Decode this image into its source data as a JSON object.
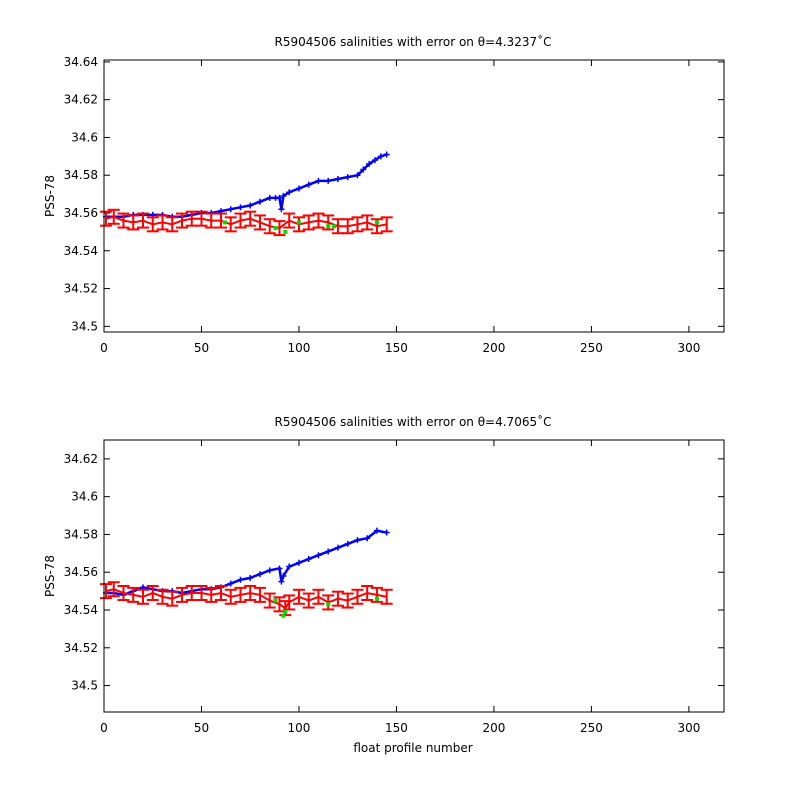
{
  "chart_data": [
    {
      "type": "line",
      "title": "R5904506 salinities with error on θ=4.3237˚C",
      "xlabel": "",
      "ylabel": "PSS-78",
      "xlim": [
        0,
        318
      ],
      "ylim": [
        34.497,
        34.641
      ],
      "xticks": [
        0,
        50,
        100,
        150,
        200,
        250,
        300
      ],
      "xtick_labels": [
        "0",
        "50",
        "100",
        "150",
        "200",
        "250",
        "300"
      ],
      "yticks": [
        34.5,
        34.52,
        34.54,
        34.56,
        34.58,
        34.6,
        34.62,
        34.64
      ],
      "ytick_labels": [
        "34.5",
        "34.52",
        "34.54",
        "34.56",
        "34.58",
        "34.6",
        "34.62",
        "34.64"
      ],
      "grid": false,
      "legend": "none",
      "series": [
        {
          "color": "#0000ff",
          "x": [
            1,
            5,
            10,
            15,
            20,
            25,
            30,
            35,
            40,
            45,
            50,
            55,
            60,
            65,
            70,
            75,
            80,
            85,
            88,
            90,
            91,
            92,
            95,
            100,
            105,
            110,
            115,
            120,
            125,
            130,
            133,
            136,
            139,
            142,
            145
          ],
          "y": [
            34.558,
            34.558,
            34.558,
            34.559,
            34.559,
            34.559,
            34.559,
            34.558,
            34.558,
            34.559,
            34.56,
            34.56,
            34.561,
            34.562,
            34.563,
            34.564,
            34.566,
            34.568,
            34.568,
            34.568,
            34.562,
            34.569,
            34.571,
            34.573,
            34.575,
            34.577,
            34.577,
            34.578,
            34.579,
            34.58,
            34.583,
            34.586,
            34.588,
            34.59,
            34.591
          ]
        },
        {
          "color": "#ff0000",
          "x": [
            1,
            5,
            10,
            15,
            20,
            25,
            30,
            35,
            40,
            45,
            50,
            55,
            60,
            65,
            70,
            75,
            80,
            85,
            90,
            95,
            100,
            105,
            110,
            115,
            120,
            125,
            130,
            135,
            140,
            145
          ],
          "y": [
            34.557,
            34.558,
            34.556,
            34.555,
            34.556,
            34.554,
            34.555,
            34.554,
            34.556,
            34.557,
            34.557,
            34.556,
            34.556,
            34.554,
            34.556,
            34.557,
            34.555,
            34.553,
            34.552,
            34.556,
            34.554,
            34.555,
            34.556,
            34.555,
            34.553,
            34.553,
            34.554,
            34.555,
            34.553,
            34.554
          ]
        },
        {
          "color": "#00dd00",
          "x": [
            62,
            88,
            93,
            100,
            115,
            118,
            140
          ],
          "y": [
            34.555,
            34.552,
            34.55,
            34.555,
            34.553,
            34.553,
            34.555
          ]
        }
      ]
    },
    {
      "type": "line",
      "title": "R5904506 salinities with error on θ=4.7065˚C",
      "xlabel": "float profile number",
      "ylabel": "PSS-78",
      "xlim": [
        0,
        318
      ],
      "ylim": [
        34.486,
        34.63
      ],
      "xticks": [
        0,
        50,
        100,
        150,
        200,
        250,
        300
      ],
      "xtick_labels": [
        "0",
        "50",
        "100",
        "150",
        "200",
        "250",
        "300"
      ],
      "yticks": [
        34.5,
        34.52,
        34.54,
        34.56,
        34.58,
        34.6,
        34.62
      ],
      "ytick_labels": [
        "34.5",
        "34.52",
        "34.54",
        "34.56",
        "34.58",
        "34.6",
        "34.62"
      ],
      "grid": false,
      "legend": "none",
      "series": [
        {
          "color": "#0000ff",
          "x": [
            1,
            5,
            10,
            15,
            20,
            25,
            30,
            35,
            40,
            45,
            50,
            55,
            60,
            65,
            70,
            75,
            80,
            85,
            90,
            91,
            92,
            95,
            100,
            105,
            110,
            115,
            120,
            125,
            130,
            135,
            140,
            145
          ],
          "y": [
            34.549,
            34.549,
            34.548,
            34.55,
            34.552,
            34.551,
            34.55,
            34.55,
            34.549,
            34.55,
            34.551,
            34.551,
            34.552,
            34.554,
            34.556,
            34.557,
            34.559,
            34.561,
            34.562,
            34.555,
            34.558,
            34.563,
            34.565,
            34.567,
            34.569,
            34.571,
            34.573,
            34.575,
            34.577,
            34.578,
            34.582,
            34.581
          ]
        },
        {
          "color": "#ff0000",
          "x": [
            1,
            5,
            10,
            15,
            20,
            25,
            30,
            35,
            40,
            45,
            50,
            55,
            60,
            65,
            70,
            75,
            80,
            85,
            90,
            93,
            95,
            100,
            105,
            110,
            115,
            120,
            125,
            130,
            135,
            140,
            145
          ],
          "y": [
            34.55,
            34.551,
            34.549,
            34.548,
            34.547,
            34.549,
            34.547,
            34.546,
            34.548,
            34.549,
            34.549,
            34.548,
            34.549,
            34.547,
            34.548,
            34.549,
            34.548,
            34.545,
            34.543,
            34.541,
            34.544,
            34.547,
            34.545,
            34.547,
            34.544,
            34.546,
            34.545,
            34.547,
            34.549,
            34.548,
            34.547
          ]
        },
        {
          "color": "#00dd00",
          "x": [
            88,
            92,
            93,
            115,
            140
          ],
          "y": [
            34.545,
            34.537,
            34.539,
            34.543,
            34.546
          ]
        }
      ]
    }
  ]
}
